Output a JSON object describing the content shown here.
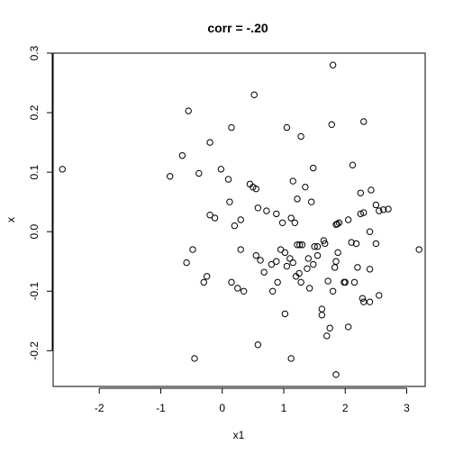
{
  "chart_data": {
    "type": "scatter",
    "title": "corr = -.20",
    "xlabel": "x1",
    "ylabel": "x",
    "xlim": [
      -2.75,
      3.3
    ],
    "ylim": [
      -0.26,
      0.3
    ],
    "xticks": [
      -2,
      -1,
      0,
      1,
      2,
      3
    ],
    "yticks": [
      -0.2,
      -0.1,
      0.0,
      0.1,
      0.2,
      0.3
    ],
    "xtick_labels": [
      "-2",
      "-1",
      "0",
      "1",
      "2",
      "3"
    ],
    "ytick_labels": [
      "-0.2",
      "-0.1",
      "0.0",
      "0.1",
      "0.2",
      "0.3"
    ],
    "grid": false,
    "legend": "none",
    "point_style": "open-circle",
    "color": "#000000",
    "x": [
      -2.6,
      -0.85,
      -0.55,
      -0.65,
      -0.38,
      -0.2,
      -0.02,
      0.1,
      0.15,
      0.52,
      0.45,
      0.5,
      1.05,
      1.15,
      1.28,
      1.48,
      1.8,
      2.3,
      1.78,
      2.12,
      2.42,
      2.25,
      2.5,
      2.62,
      2.7,
      3.2,
      -0.2,
      -0.12,
      0.3,
      0.58,
      0.72,
      0.88,
      0.98,
      1.12,
      1.22,
      1.35,
      1.45,
      1.55,
      1.67,
      1.85,
      1.9,
      2.05,
      2.18,
      2.25,
      2.3,
      2.4,
      2.5,
      2.55,
      -0.48,
      -0.58,
      -0.3,
      -0.25,
      0.12,
      0.2,
      0.3,
      0.35,
      0.55,
      0.62,
      0.68,
      0.8,
      0.9,
      0.95,
      1.05,
      1.1,
      1.2,
      1.28,
      1.38,
      1.48,
      1.55,
      1.62,
      1.72,
      1.8,
      1.88,
      1.98,
      2.05,
      2.15,
      2.2,
      2.3,
      2.4,
      2.55,
      0.15,
      0.25,
      0.58,
      0.82,
      1.02,
      1.15,
      1.25,
      1.42,
      1.62,
      1.7,
      1.75,
      1.85,
      2.0,
      2.1,
      2.28,
      2.4,
      1.12,
      0.55,
      -0.45,
      1.85,
      0.88,
      1.02,
      1.18,
      1.3,
      1.22,
      1.26,
      1.4,
      1.5,
      1.65,
      1.83,
      1.87
    ],
    "y": [
      0.105,
      0.093,
      0.203,
      0.128,
      0.098,
      0.15,
      0.105,
      0.088,
      0.175,
      0.23,
      0.08,
      0.075,
      0.175,
      0.085,
      0.16,
      0.107,
      0.28,
      0.185,
      0.18,
      0.112,
      0.07,
      0.065,
      0.045,
      0.037,
      0.038,
      -0.03,
      0.028,
      0.023,
      0.02,
      0.04,
      0.035,
      0.03,
      0.015,
      0.023,
      0.055,
      0.075,
      0.05,
      -0.025,
      -0.02,
      0.012,
      0.015,
      0.02,
      -0.02,
      0.03,
      0.032,
      0.0,
      -0.02,
      0.035,
      -0.03,
      -0.052,
      -0.085,
      -0.075,
      0.05,
      0.01,
      -0.03,
      -0.1,
      -0.04,
      -0.048,
      -0.068,
      -0.055,
      -0.085,
      -0.03,
      -0.058,
      -0.045,
      -0.075,
      -0.085,
      -0.062,
      -0.055,
      -0.04,
      -0.13,
      -0.083,
      -0.1,
      -0.035,
      -0.085,
      -0.16,
      -0.085,
      -0.06,
      -0.118,
      -0.118,
      -0.107,
      -0.085,
      -0.095,
      -0.19,
      -0.1,
      -0.138,
      -0.052,
      -0.07,
      -0.095,
      -0.14,
      -0.175,
      -0.162,
      -0.24,
      -0.085,
      -0.018,
      -0.112,
      -0.063,
      -0.213,
      0.072,
      -0.213,
      -0.05,
      -0.05,
      -0.035,
      0.015,
      -0.022,
      -0.022,
      -0.022,
      -0.045,
      -0.025,
      -0.015,
      -0.06,
      0.013
    ]
  }
}
